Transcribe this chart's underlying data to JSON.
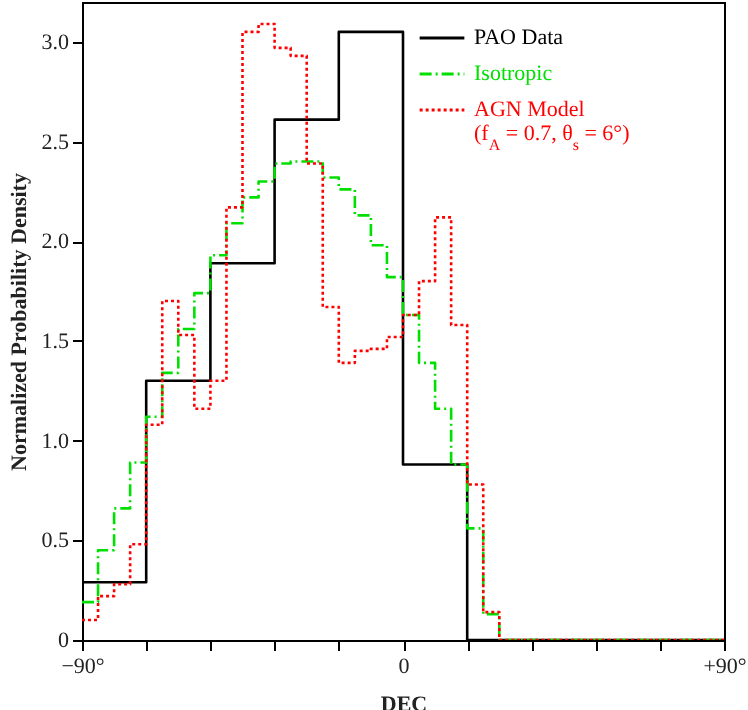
{
  "chart_data": {
    "type": "step",
    "xlabel": "DEC",
    "ylabel": "Normalized Probability Density",
    "xlim": [
      -90,
      90
    ],
    "ylim": [
      0,
      3.2
    ],
    "xticks": [
      {
        "value": -90,
        "label": "−90°"
      },
      {
        "value": -72,
        "label": null
      },
      {
        "value": -54,
        "label": null
      },
      {
        "value": -36,
        "label": null
      },
      {
        "value": -18,
        "label": null
      },
      {
        "value": 0,
        "label": "0"
      },
      {
        "value": 18,
        "label": null
      },
      {
        "value": 36,
        "label": null
      },
      {
        "value": 54,
        "label": null
      },
      {
        "value": 72,
        "label": null
      },
      {
        "value": 90,
        "label": "+90°"
      }
    ],
    "yticks": [
      0,
      0.5,
      {
        "value": 1,
        "label": "1.0"
      },
      1.5,
      {
        "value": 2,
        "label": "2.0"
      },
      2.5,
      {
        "value": 3,
        "label": "3.0"
      }
    ],
    "grid": false,
    "legend": "top right",
    "series": [
      {
        "name": "PAO Data",
        "color": "#000000",
        "line_style": "solid",
        "x": [
          -90,
          -72,
          -54,
          -36,
          -18,
          0,
          18,
          36,
          54,
          72,
          90
        ],
        "values": [
          0.29,
          1.3,
          1.89,
          2.61,
          3.05,
          0.88,
          0,
          0,
          0,
          0,
          0
        ]
      },
      {
        "name": "Isotropic",
        "color": "#00e000",
        "line_style": "dashed",
        "x": [
          -90,
          -85.5,
          -81,
          -76.5,
          -72,
          -67.5,
          -63,
          -58.5,
          -54,
          -49.5,
          -45,
          -40.5,
          -36,
          -31.5,
          -27,
          -22.5,
          -18,
          -13.5,
          -9,
          -4.5,
          0,
          4.5,
          9,
          13.5,
          18,
          22.5,
          27,
          31.5,
          36,
          40.5,
          45,
          49.5,
          54,
          58.5,
          63,
          67.5,
          72,
          76.5,
          81,
          85.5,
          90
        ],
        "values": [
          0.19,
          0.45,
          0.66,
          0.89,
          1.12,
          1.34,
          1.56,
          1.74,
          1.93,
          2.09,
          2.22,
          2.3,
          2.39,
          2.4,
          2.4,
          2.32,
          2.26,
          2.13,
          1.98,
          1.82,
          1.63,
          1.39,
          1.16,
          0.88,
          0.56,
          0.13,
          0,
          0,
          0,
          0,
          0,
          0,
          0,
          0,
          0,
          0,
          0,
          0,
          0,
          0,
          0
        ]
      },
      {
        "name": "AGN Model (f$_{A}$ = 0.7, θ$_{s}$ = 6°)",
        "color": "#ff0000",
        "line_style": "dotted",
        "x": [
          -90,
          -85.5,
          -81,
          -76.5,
          -72,
          -67.5,
          -63,
          -58.5,
          -54,
          -49.5,
          -45,
          -40.5,
          -36,
          -31.5,
          -27,
          -22.5,
          -18,
          -13.5,
          -9,
          -4.5,
          0,
          4.5,
          9,
          13.5,
          18,
          22.5,
          27,
          31.5,
          36,
          40.5,
          45,
          49.5,
          54,
          58.5,
          63,
          67.5,
          72,
          76.5,
          81,
          85.5,
          90
        ],
        "values": [
          0.1,
          0.22,
          0.28,
          0.48,
          1.08,
          1.7,
          1.53,
          1.16,
          1.3,
          2.17,
          3.05,
          3.09,
          2.97,
          2.93,
          2.39,
          1.67,
          1.39,
          1.45,
          1.46,
          1.52,
          1.63,
          1.8,
          2.12,
          1.58,
          0.78,
          0.14,
          0,
          0,
          0,
          0,
          0,
          0,
          0,
          0,
          0,
          0,
          0,
          0,
          0,
          0,
          0
        ]
      }
    ]
  }
}
